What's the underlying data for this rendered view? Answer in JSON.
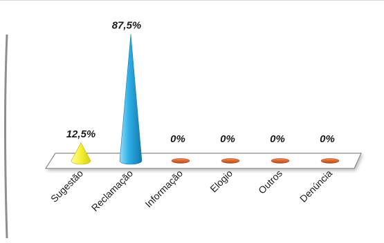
{
  "chart_data": {
    "type": "bar",
    "categories": [
      "Sugestão",
      "Reclamação",
      "Informação",
      "Elogio",
      "Outros",
      "Denúncia"
    ],
    "values": [
      12.5,
      87.5,
      0,
      0,
      0,
      0
    ],
    "value_labels": [
      "12,5%",
      "87,5%",
      "0%",
      "0%",
      "0%",
      "0%"
    ],
    "ylim": [
      0,
      100
    ],
    "grid": false,
    "legend": "none",
    "colors": {
      "Sugestão": "#f3ef2a",
      "Reclamação": "#27a6dc",
      "Informação": "#d4622a",
      "Elogio": "#d4622a",
      "Outros": "#d4622a",
      "Denúncia": "#d4622a"
    },
    "icons": {
      "Sugestão": "cone",
      "Reclamação": "cone",
      "Informação": "flat-disc",
      "Elogio": "flat-disc",
      "Outros": "flat-disc",
      "Denúncia": "flat-disc"
    }
  }
}
